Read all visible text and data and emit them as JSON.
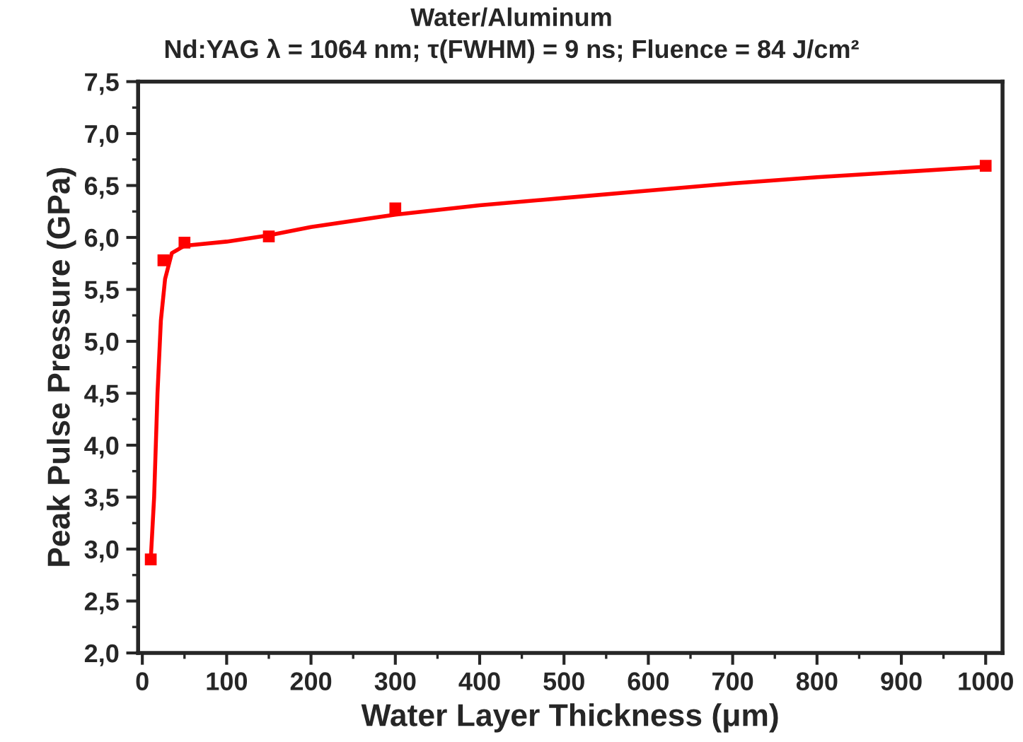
{
  "chart_data": {
    "type": "scatter",
    "title": "Water/Aluminum",
    "subtitle": "Nd:YAG λ = 1064 nm; τ(FWHM) = 9 ns; Fluence = 84 J/cm²",
    "xlabel": "Water Layer Thickness (μm)",
    "ylabel": "Peak Pulse Pressure (GPa)",
    "series": [
      {
        "color": "#ff0000",
        "marker": "square",
        "x": [
          10,
          25,
          50,
          150,
          300,
          1000
        ],
        "values": [
          2.9,
          5.78,
          5.95,
          6.01,
          6.28,
          6.69
        ]
      },
      {
        "type": "line",
        "color": "#ff0000",
        "marker": "none",
        "x": [
          10,
          14,
          18,
          22,
          27,
          35,
          50,
          100,
          150,
          200,
          300,
          400,
          500,
          600,
          700,
          800,
          900,
          1000
        ],
        "values": [
          2.9,
          3.5,
          4.5,
          5.2,
          5.6,
          5.85,
          5.92,
          5.96,
          6.02,
          6.1,
          6.22,
          6.31,
          6.38,
          6.45,
          6.52,
          6.58,
          6.63,
          6.68
        ]
      }
    ],
    "xlim": [
      -5,
      1020
    ],
    "ylim": [
      2.0,
      7.5
    ],
    "xticks": [
      0,
      100,
      200,
      300,
      400,
      500,
      600,
      700,
      800,
      900,
      1000
    ],
    "yticks": [
      {
        "value": 2.0,
        "label": "2,0"
      },
      {
        "value": 2.5,
        "label": "2,5"
      },
      {
        "value": 3.0,
        "label": "3,0"
      },
      {
        "value": 3.5,
        "label": "3,5"
      },
      {
        "value": 4.0,
        "label": "4,0"
      },
      {
        "value": 4.5,
        "label": "4,5"
      },
      {
        "value": 5.0,
        "label": "5,0"
      },
      {
        "value": 5.5,
        "label": "5,5"
      },
      {
        "value": 6.0,
        "label": "6,0"
      },
      {
        "value": 6.5,
        "label": "6,5"
      },
      {
        "value": 7.0,
        "label": "7,0"
      },
      {
        "value": 7.5,
        "label": "7,5"
      }
    ],
    "grid": false,
    "legend": false
  }
}
